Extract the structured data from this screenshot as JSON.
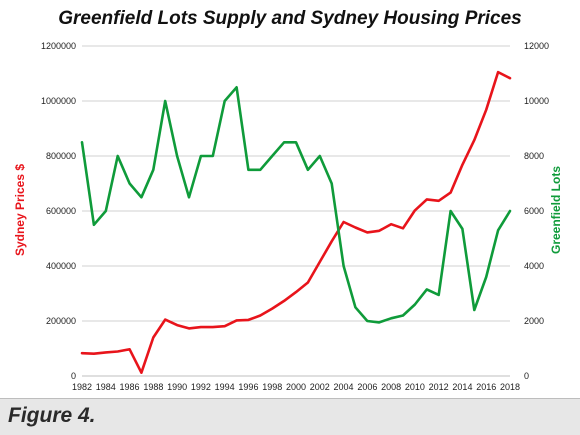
{
  "caption": "Figure 4.",
  "chart_data": {
    "type": "line",
    "title": "Greenfield Lots Supply and Sydney Housing Prices",
    "xlabel": "",
    "ylabel_left": "Sydney Prices $",
    "ylabel_right": "Greenfield Lots",
    "xlim": [
      1982,
      2018
    ],
    "ylim_left": [
      0,
      1200000
    ],
    "ylim_right": [
      0,
      12000
    ],
    "grid": "horizontal",
    "x_ticks": [
      1982,
      1984,
      1986,
      1988,
      1990,
      1992,
      1994,
      1996,
      1998,
      2000,
      2002,
      2004,
      2006,
      2008,
      2010,
      2012,
      2014,
      2016,
      2018
    ],
    "y_ticks_left": [
      "0",
      "200000",
      "400000",
      "600000",
      "800000",
      "1000000",
      "1200000"
    ],
    "y_ticks_right": [
      "0",
      "2000",
      "4000",
      "6000",
      "8000",
      "10000",
      "12000"
    ],
    "series": [
      {
        "name": "Sydney Prices $",
        "axis": "left",
        "color": "#e8141b",
        "x": [
          1982,
          1983,
          1984,
          1985,
          1986,
          1987,
          1988,
          1989,
          1990,
          1991,
          1992,
          1993,
          1994,
          1995,
          1996,
          1997,
          1998,
          1999,
          2000,
          2001,
          2002,
          2003,
          2004,
          2005,
          2006,
          2007,
          2008,
          2009,
          2010,
          2011,
          2012,
          2013,
          2014,
          2015,
          2016,
          2017,
          2018
        ],
        "values": [
          83000,
          81000,
          86000,
          89000,
          97000,
          12000,
          140000,
          205000,
          185000,
          173000,
          178000,
          178000,
          181000,
          202000,
          204000,
          220000,
          245000,
          273000,
          305000,
          340000,
          415000,
          490000,
          560000,
          540000,
          522000,
          528000,
          552000,
          537000,
          602000,
          642000,
          637000,
          667000,
          768000,
          858000,
          968000,
          1105000,
          1083000
        ]
      },
      {
        "name": "Greenfield Lots",
        "axis": "right",
        "color": "#0f9b3a",
        "x": [
          1982,
          1983,
          1984,
          1985,
          1986,
          1987,
          1988,
          1989,
          1990,
          1991,
          1992,
          1993,
          1994,
          1995,
          1996,
          1997,
          1998,
          1999,
          2000,
          2001,
          2002,
          2003,
          2004,
          2005,
          2006,
          2007,
          2008,
          2009,
          2010,
          2011,
          2012,
          2013,
          2014,
          2015,
          2016,
          2017,
          2018
        ],
        "values": [
          8500,
          5500,
          6000,
          8000,
          7000,
          6500,
          7500,
          10000,
          8000,
          6500,
          8000,
          8000,
          10000,
          10500,
          7500,
          7500,
          8000,
          8500,
          8500,
          7500,
          8000,
          7000,
          4000,
          2500,
          2000,
          1950,
          2100,
          2200,
          2600,
          3150,
          2950,
          6000,
          5350,
          2400,
          3600,
          5300,
          6000
        ]
      }
    ]
  }
}
